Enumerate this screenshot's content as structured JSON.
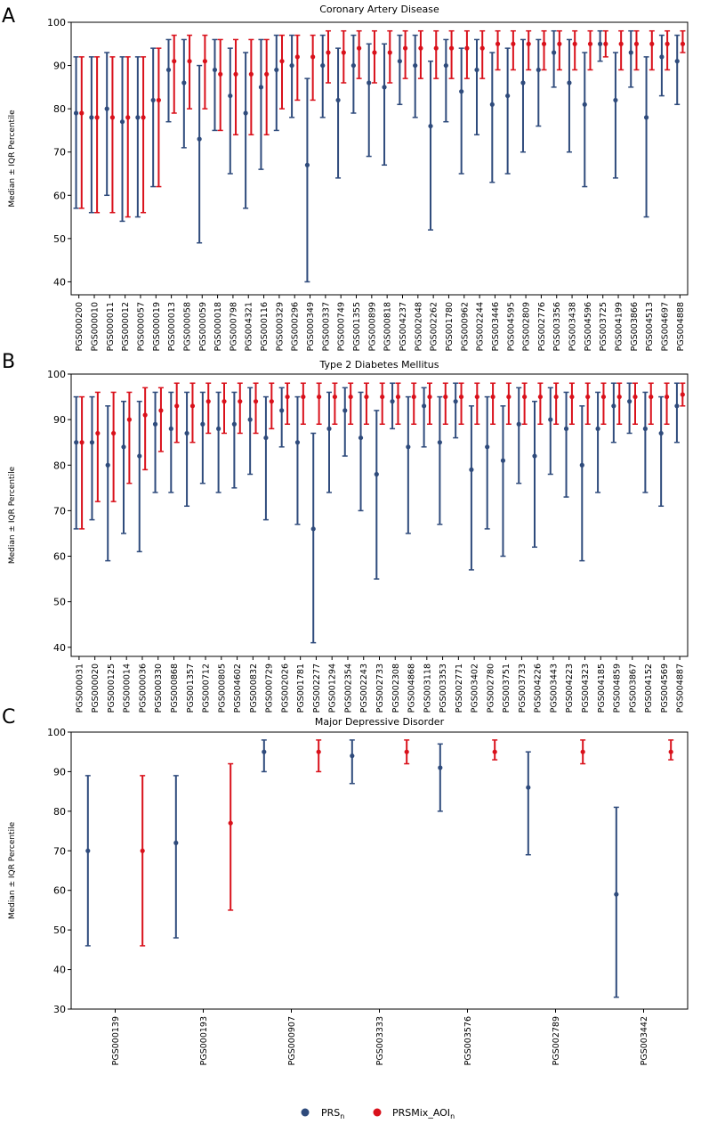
{
  "colors": {
    "prs": "#2f4b7c",
    "mix": "#d9111b"
  },
  "legend": {
    "prs_label": "PRS",
    "prs_sub": "n",
    "mix_label": "PRSMix_AOI",
    "mix_sub": "n"
  },
  "chart_data": [
    {
      "type": "errorbar",
      "panel": "A",
      "title": "Coronary Artery Disease",
      "ylabel": "Median ± IQR Percentile",
      "ylim": [
        37,
        100
      ],
      "yticks": [
        40,
        50,
        60,
        70,
        80,
        90,
        100
      ],
      "categories": [
        "PGS000200",
        "PGS000010",
        "PGS000011",
        "PGS000012",
        "PGS000057",
        "PGS000019",
        "PGS000013",
        "PGS000058",
        "PGS000059",
        "PGS000018",
        "PGS000798",
        "PGS004321",
        "PGS000116",
        "PGS000329",
        "PGS000296",
        "PGS000349",
        "PGS000337",
        "PGS000749",
        "PGS001355",
        "PGS000899",
        "PGS000818",
        "PGS004237",
        "PGS002048",
        "PGS002262",
        "PGS001780",
        "PGS000962",
        "PGS002244",
        "PGS003446",
        "PGS004595",
        "PGS002809",
        "PGS002776",
        "PGS003356",
        "PGS003438",
        "PGS004596",
        "PGS003725",
        "PGS004199",
        "PGS003866",
        "PGS004513",
        "PGS004697",
        "PGS004888"
      ],
      "series": [
        {
          "name": "PRS",
          "median": [
            79,
            78,
            80,
            77,
            78,
            82,
            89,
            86,
            73,
            89,
            83,
            79,
            85,
            89,
            90,
            67,
            90,
            82,
            90,
            86,
            85,
            91,
            90,
            76,
            90,
            84,
            89,
            81,
            83,
            86,
            89,
            93,
            86,
            81,
            95,
            82,
            93,
            78,
            92,
            91
          ],
          "low": [
            57,
            56,
            60,
            54,
            55,
            62,
            77,
            71,
            49,
            75,
            65,
            57,
            66,
            75,
            78,
            40,
            78,
            64,
            79,
            69,
            67,
            81,
            78,
            52,
            77,
            65,
            74,
            63,
            65,
            70,
            76,
            85,
            70,
            62,
            91,
            64,
            85,
            55,
            83,
            81
          ],
          "high": [
            92,
            92,
            93,
            92,
            92,
            94,
            96,
            96,
            90,
            96,
            94,
            93,
            96,
            97,
            97,
            87,
            97,
            94,
            97,
            95,
            95,
            97,
            97,
            91,
            96,
            94,
            96,
            93,
            94,
            96,
            96,
            98,
            96,
            93,
            98,
            93,
            98,
            92,
            97,
            97
          ]
        },
        {
          "name": "PRSMix_AOI",
          "median": [
            79,
            78,
            78,
            78,
            78,
            82,
            91,
            91,
            91,
            88,
            88,
            88,
            88,
            91,
            92,
            92,
            93,
            93,
            94,
            93,
            93,
            94,
            94,
            94,
            94,
            94,
            94,
            95,
            95,
            95,
            95,
            95,
            95,
            95,
            95,
            95,
            95,
            95,
            95,
            95
          ],
          "low": [
            57,
            56,
            56,
            55,
            56,
            62,
            79,
            80,
            80,
            75,
            74,
            74,
            74,
            80,
            82,
            82,
            86,
            86,
            87,
            86,
            86,
            87,
            87,
            87,
            87,
            87,
            87,
            89,
            89,
            89,
            89,
            89,
            89,
            89,
            92,
            89,
            89,
            89,
            89,
            93
          ],
          "high": [
            92,
            92,
            92,
            92,
            92,
            94,
            97,
            97,
            97,
            96,
            96,
            96,
            96,
            97,
            97,
            97,
            98,
            98,
            98,
            98,
            98,
            98,
            98,
            98,
            98,
            98,
            98,
            98,
            98,
            98,
            98,
            98,
            98,
            98,
            98,
            98,
            98,
            98,
            98,
            98
          ]
        }
      ]
    },
    {
      "type": "errorbar",
      "panel": "B",
      "title": "Type 2 Diabetes Mellitus",
      "ylabel": "Median ± IQR Percentile",
      "ylim": [
        38,
        100
      ],
      "yticks": [
        40,
        50,
        60,
        70,
        80,
        90,
        100
      ],
      "categories": [
        "PGS000031",
        "PGS000020",
        "PGS000125",
        "PGS000014",
        "PGS000036",
        "PGS000330",
        "PGS000868",
        "PGS001357",
        "PGS000712",
        "PGS000805",
        "PGS004602",
        "PGS000832",
        "PGS000729",
        "PGS002026",
        "PGS001781",
        "PGS002277",
        "PGS001294",
        "PGS002354",
        "PGS002243",
        "PGS002733",
        "PGS002308",
        "PGS004868",
        "PGS003118",
        "PGS003353",
        "PGS002771",
        "PGS003402",
        "PGS002780",
        "PGS003751",
        "PGS003733",
        "PGS004226",
        "PGS003443",
        "PGS004223",
        "PGS004323",
        "PGS004185",
        "PGS004859",
        "PGS003867",
        "PGS004152",
        "PGS004569",
        "PGS004887"
      ],
      "series": [
        {
          "name": "PRS",
          "median": [
            85,
            85,
            80,
            84,
            82,
            89,
            88,
            87,
            89,
            88,
            89,
            90,
            86,
            92,
            85,
            66,
            88,
            92,
            86,
            78,
            94,
            84,
            93,
            85,
            94,
            79,
            84,
            81,
            89,
            82,
            90,
            88,
            80,
            88,
            93,
            94,
            88,
            87,
            93
          ],
          "low": [
            66,
            68,
            59,
            65,
            61,
            74,
            74,
            71,
            76,
            74,
            75,
            78,
            68,
            84,
            67,
            41,
            74,
            82,
            70,
            55,
            88,
            65,
            84,
            67,
            86,
            57,
            66,
            60,
            76,
            62,
            78,
            73,
            59,
            74,
            85,
            87,
            74,
            71,
            85
          ],
          "high": [
            95,
            95,
            93,
            94,
            94,
            96,
            96,
            96,
            96,
            96,
            96,
            97,
            95,
            97,
            95,
            87,
            96,
            97,
            96,
            92,
            98,
            95,
            97,
            95,
            98,
            93,
            95,
            93,
            97,
            94,
            97,
            96,
            93,
            96,
            98,
            98,
            96,
            95,
            98
          ]
        },
        {
          "name": "PRSMix_AOI",
          "median": [
            85,
            87,
            87,
            90,
            91,
            92,
            93,
            93,
            94,
            94,
            94,
            94,
            94,
            95,
            95,
            95,
            95,
            95,
            95,
            95,
            95,
            95,
            95,
            95,
            95,
            95,
            95,
            95,
            95,
            95,
            95,
            95,
            95,
            95,
            95,
            95,
            95,
            95,
            95.5
          ],
          "low": [
            66,
            72,
            72,
            76,
            79,
            83,
            85,
            85,
            87,
            87,
            87,
            87,
            88,
            89,
            89,
            89,
            89,
            89,
            89,
            89,
            89,
            89,
            89,
            89,
            89,
            89,
            89,
            89,
            89,
            89,
            89,
            89,
            89,
            89,
            89,
            89,
            89,
            89,
            93
          ],
          "high": [
            95,
            96,
            96,
            96,
            97,
            97,
            98,
            98,
            98,
            98,
            98,
            98,
            98,
            98,
            98,
            98,
            98,
            98,
            98,
            98,
            98,
            98,
            98,
            98,
            98,
            98,
            98,
            98,
            98,
            98,
            98,
            98,
            98,
            98,
            98,
            98,
            98,
            98,
            98
          ]
        }
      ]
    },
    {
      "type": "errorbar",
      "panel": "C",
      "title": "Major Depressive Disorder",
      "ylabel": "Median ± IQR Percentile",
      "ylim": [
        30,
        100
      ],
      "yticks": [
        30,
        40,
        50,
        60,
        70,
        80,
        90,
        100
      ],
      "categories": [
        "PGS000139",
        "PGS000193",
        "PGS000907",
        "PGS003333",
        "PGS003576",
        "PGS002789",
        "PGS003442"
      ],
      "series": [
        {
          "name": "PRS",
          "median": [
            70,
            72,
            95,
            94,
            91,
            86,
            59
          ],
          "low": [
            46,
            48,
            90,
            87,
            80,
            69,
            33
          ],
          "high": [
            89,
            89,
            98,
            98,
            97,
            95,
            81
          ]
        },
        {
          "name": "PRSMix_AOI",
          "median": [
            70,
            77,
            95,
            95,
            95,
            95,
            95
          ],
          "low": [
            46,
            55,
            90,
            92,
            93,
            92,
            93
          ],
          "high": [
            89,
            92,
            98,
            98,
            98,
            98,
            98
          ]
        }
      ]
    }
  ]
}
